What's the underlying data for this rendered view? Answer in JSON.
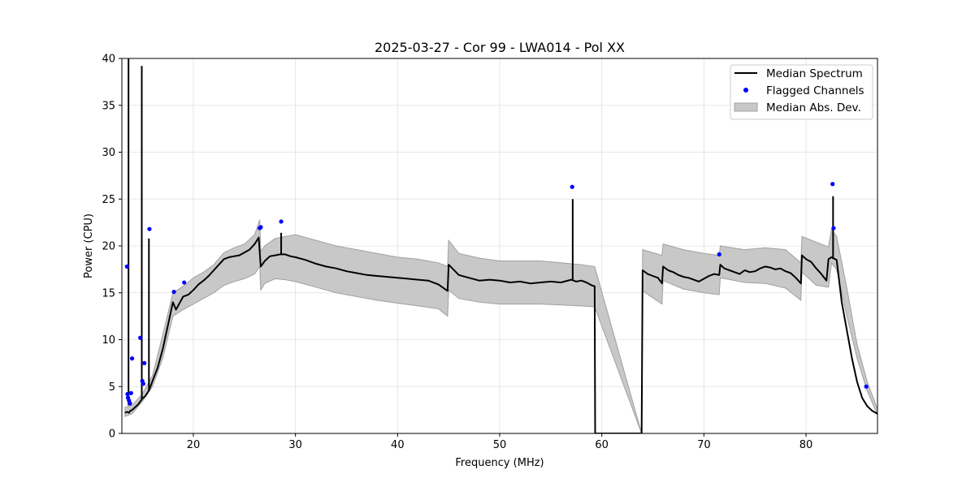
{
  "chart_data": {
    "type": "line",
    "title": "2025-03-27 - Cor 99 - LWA014 - Pol XX",
    "xlabel": "Frequency (MHz)",
    "ylabel": "Power (CPU)",
    "xlim": [
      13,
      87
    ],
    "ylim": [
      0,
      40
    ],
    "xticks": [
      20,
      30,
      40,
      50,
      60,
      70,
      80
    ],
    "yticks": [
      0,
      5,
      10,
      15,
      20,
      25,
      30,
      35,
      40
    ],
    "grid": true,
    "legend_position": "top-right",
    "colors": {
      "median": "#000000",
      "flagged": "#0000ff",
      "mad_fill": "#c8c8c8",
      "mad_edge": "#a0a0a0"
    },
    "series": [
      {
        "name": "Median Spectrum",
        "kind": "line",
        "x": [
          13.3,
          13.5,
          13.7,
          13.8,
          14.0,
          14.2,
          14.4,
          14.6,
          14.8,
          15.0,
          15.3,
          15.6,
          15.8,
          16.0,
          16.5,
          17.0,
          17.5,
          18.0,
          18.3,
          18.6,
          19.0,
          19.5,
          20.0,
          20.5,
          21.0,
          21.5,
          22.0,
          22.5,
          23.0,
          23.5,
          24.0,
          24.5,
          25.0,
          25.5,
          26.0,
          26.4,
          26.6,
          27.0,
          27.5,
          28.0,
          28.5,
          29.0,
          29.5,
          30.0,
          31.0,
          32.0,
          33.0,
          34.0,
          35.0,
          36.0,
          37.0,
          38.0,
          39.0,
          40.0,
          41.0,
          42.0,
          43.0,
          44.0,
          44.9,
          45.0,
          46.0,
          47.0,
          48.0,
          49.0,
          50.0,
          51.0,
          52.0,
          53.0,
          54.0,
          55.0,
          56.0,
          57.0,
          57.5,
          58.0,
          58.5,
          59.0,
          59.3,
          59.35,
          59.5,
          63.9,
          64.0,
          64.5,
          65.0,
          65.5,
          65.9,
          66.0,
          66.5,
          67.0,
          67.5,
          68.0,
          68.5,
          69.0,
          69.5,
          70.0,
          70.5,
          71.0,
          71.5,
          71.6,
          72.0,
          72.5,
          73.0,
          73.5,
          74.0,
          74.5,
          75.0,
          75.5,
          76.0,
          76.5,
          77.0,
          77.5,
          78.0,
          78.5,
          79.0,
          79.5,
          79.6,
          80.0,
          80.5,
          81.0,
          81.5,
          82.0,
          82.2,
          82.5,
          83.0,
          83.5,
          84.0,
          84.5,
          85.0,
          85.5,
          86.0,
          86.5,
          87.0
        ],
        "y": [
          2.2,
          2.3,
          2.2,
          2.4,
          2.5,
          2.7,
          2.9,
          3.1,
          3.4,
          3.7,
          4.0,
          4.5,
          5.0,
          5.6,
          7.0,
          9.0,
          11.5,
          14.0,
          13.2,
          13.8,
          14.6,
          14.8,
          15.3,
          15.9,
          16.3,
          16.8,
          17.4,
          18.0,
          18.6,
          18.8,
          18.9,
          19.0,
          19.3,
          19.6,
          20.2,
          20.9,
          17.8,
          18.4,
          18.9,
          19.0,
          19.1,
          19.1,
          18.9,
          18.8,
          18.5,
          18.1,
          17.8,
          17.6,
          17.3,
          17.1,
          16.9,
          16.8,
          16.7,
          16.6,
          16.5,
          16.4,
          16.3,
          15.9,
          15.2,
          18.0,
          16.9,
          16.6,
          16.3,
          16.4,
          16.3,
          16.1,
          16.2,
          16.0,
          16.1,
          16.2,
          16.1,
          16.4,
          16.2,
          16.3,
          16.1,
          15.8,
          15.7,
          0.0,
          0.0,
          0.0,
          17.4,
          17.0,
          16.8,
          16.6,
          16.0,
          17.8,
          17.4,
          17.2,
          16.9,
          16.7,
          16.6,
          16.4,
          16.2,
          16.5,
          16.8,
          17.0,
          16.9,
          18.0,
          17.6,
          17.4,
          17.2,
          17.0,
          17.4,
          17.2,
          17.3,
          17.6,
          17.8,
          17.7,
          17.5,
          17.6,
          17.3,
          17.1,
          16.6,
          16.0,
          19.0,
          18.6,
          18.3,
          17.6,
          17.0,
          16.3,
          18.6,
          18.8,
          18.5,
          14.0,
          11.0,
          8.0,
          5.5,
          3.8,
          2.9,
          2.4,
          2.1
        ]
      },
      {
        "name": "Median Abs. Dev.",
        "kind": "band",
        "x": [
          13.3,
          14.0,
          15.0,
          16.0,
          17.0,
          18.0,
          19.0,
          20.0,
          21.0,
          22.0,
          23.0,
          24.0,
          25.0,
          26.0,
          26.5,
          26.6,
          27.0,
          28.0,
          29.0,
          30.0,
          32.0,
          34.0,
          36.0,
          38.0,
          40.0,
          42.0,
          44.0,
          44.9,
          45.0,
          46.0,
          48.0,
          50.0,
          52.0,
          54.0,
          56.0,
          58.0,
          59.3,
          63.9,
          64.0,
          65.9,
          66.0,
          68.0,
          70.0,
          71.5,
          71.6,
          74.0,
          76.0,
          78.0,
          79.5,
          79.6,
          81.0,
          82.2,
          82.5,
          83.0,
          84.0,
          85.0,
          86.0,
          87.0
        ],
        "lower": [
          1.8,
          2.1,
          3.4,
          5.0,
          8.0,
          12.5,
          13.2,
          13.8,
          14.4,
          15.0,
          15.8,
          16.2,
          16.5,
          17.0,
          17.8,
          15.3,
          16.0,
          16.5,
          16.4,
          16.2,
          15.6,
          15.0,
          14.6,
          14.2,
          13.9,
          13.6,
          13.3,
          12.5,
          15.3,
          14.4,
          14.0,
          13.8,
          13.8,
          13.8,
          13.7,
          13.6,
          13.5,
          0.0,
          15.2,
          13.8,
          16.3,
          15.4,
          15.0,
          14.8,
          16.6,
          16.1,
          16.0,
          15.5,
          14.2,
          17.2,
          15.8,
          15.6,
          18.2,
          17.5,
          12.5,
          8.0,
          4.5,
          2.0
        ],
        "upper": [
          2.8,
          3.0,
          4.2,
          6.2,
          10.5,
          15.0,
          15.7,
          16.6,
          17.2,
          18.0,
          19.3,
          19.8,
          20.2,
          21.2,
          22.8,
          19.4,
          20.0,
          20.8,
          21.0,
          21.2,
          20.6,
          20.0,
          19.6,
          19.2,
          18.8,
          18.6,
          18.2,
          17.8,
          20.6,
          19.2,
          18.7,
          18.4,
          18.4,
          18.4,
          18.2,
          18.0,
          17.8,
          0.0,
          19.6,
          19.0,
          20.2,
          19.6,
          19.2,
          19.0,
          20.0,
          19.6,
          19.8,
          19.6,
          18.2,
          21.0,
          20.4,
          19.9,
          21.8,
          21.0,
          15.5,
          9.5,
          5.5,
          2.6
        ]
      },
      {
        "name": "Flagged Channels",
        "kind": "scatter",
        "x": [
          13.5,
          13.55,
          13.6,
          13.7,
          13.8,
          13.9,
          14.0,
          14.8,
          15.0,
          15.1,
          15.2,
          15.7,
          18.1,
          19.1,
          26.5,
          26.6,
          28.6,
          57.1,
          71.5,
          82.6,
          82.7,
          85.9
        ],
        "y": [
          17.8,
          4.2,
          3.8,
          3.5,
          3.2,
          4.3,
          8.0,
          10.2,
          5.6,
          5.3,
          7.5,
          21.8,
          15.1,
          16.1,
          21.9,
          22.0,
          22.6,
          26.3,
          19.1,
          26.6,
          21.9,
          5.0
        ]
      }
    ],
    "spikes": [
      {
        "x": 13.65,
        "ymax": 40.0,
        "base": 3.0
      },
      {
        "x": 14.95,
        "ymax": 39.2,
        "base": 3.6
      },
      {
        "x": 15.65,
        "ymax": 20.8,
        "base": 4.5
      },
      {
        "x": 28.6,
        "ymax": 21.4,
        "base": 19.1
      },
      {
        "x": 57.15,
        "ymax": 25.0,
        "base": 16.3
      },
      {
        "x": 82.65,
        "ymax": 25.3,
        "base": 18.6
      }
    ]
  }
}
